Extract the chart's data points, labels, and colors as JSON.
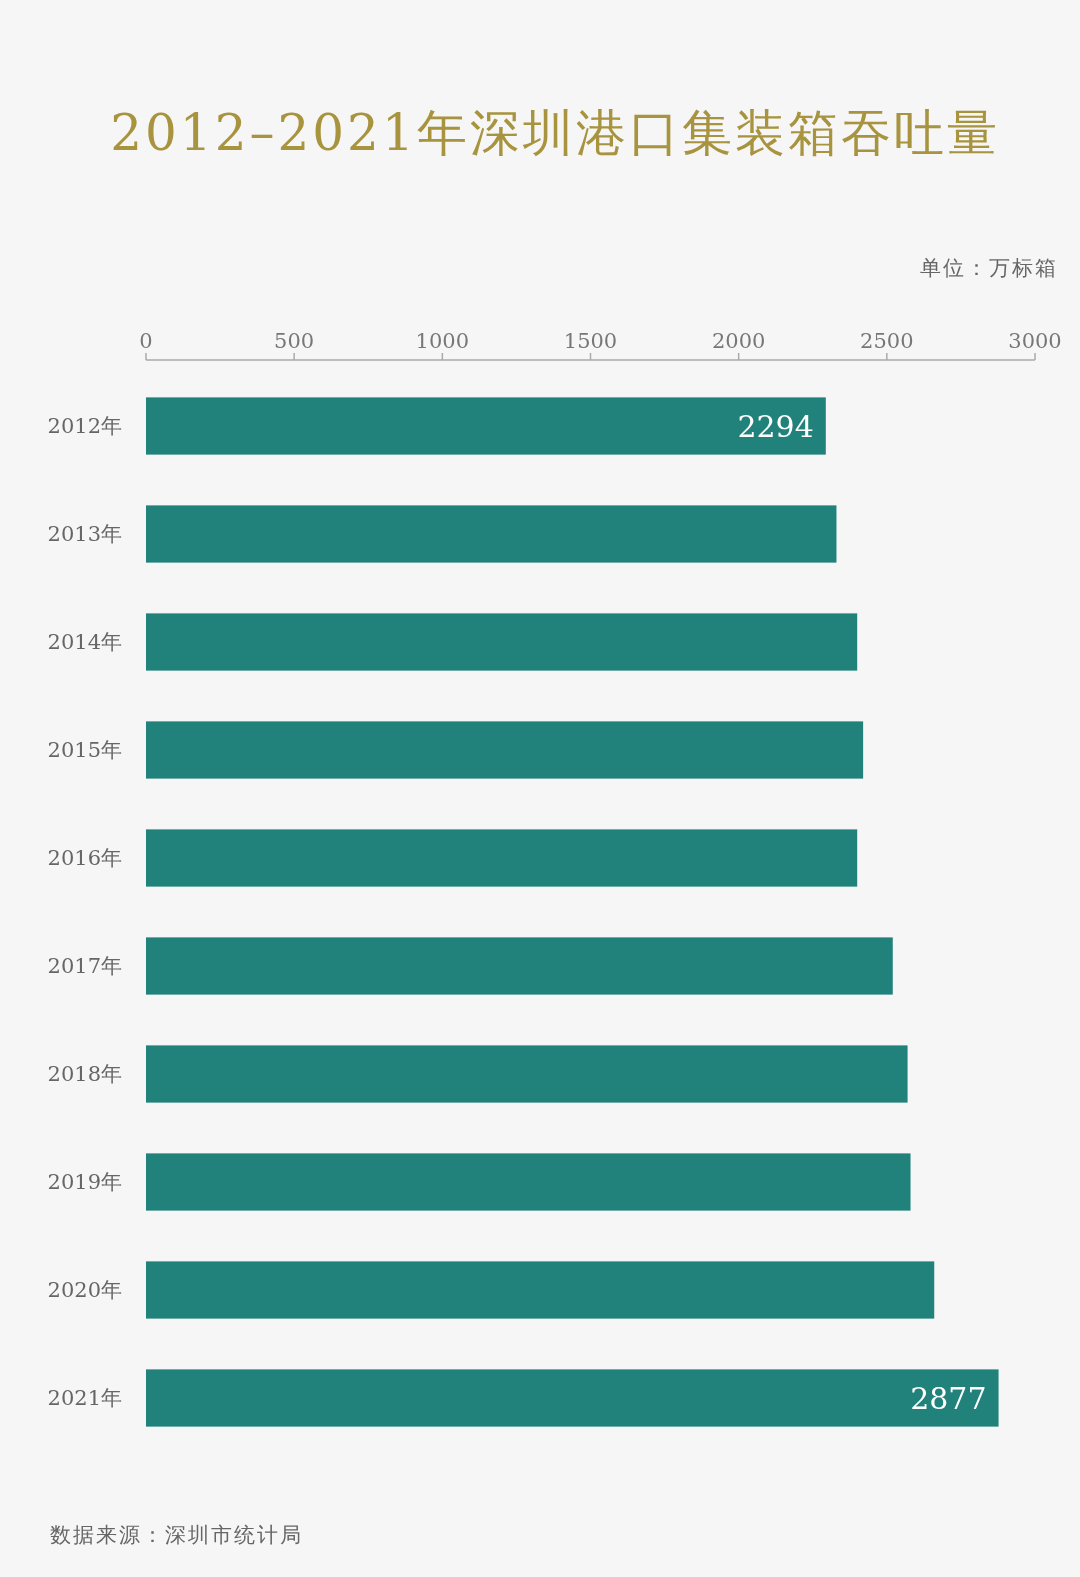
{
  "chart_data": {
    "type": "bar",
    "orientation": "horizontal",
    "title": "2012–2021年深圳港口集装箱吞吐量",
    "xlabel": "单位：万标箱",
    "annotations": [
      "数据来源：深圳市统计局"
    ],
    "categories": [
      "2012年",
      "2013年",
      "2014年",
      "2015年",
      "2016年",
      "2017年",
      "2018年",
      "2019年",
      "2020年",
      "2021年"
    ],
    "values": [
      2294,
      2330,
      2400,
      2420,
      2400,
      2520,
      2570,
      2580,
      2660,
      2877
    ],
    "value_labels": [
      "2294",
      null,
      null,
      null,
      null,
      null,
      null,
      null,
      null,
      "2877"
    ],
    "color": "#20827b",
    "xlim": [
      0,
      3000
    ],
    "xticks": [
      0,
      500,
      1000,
      1500,
      2000,
      2500,
      3000
    ]
  }
}
